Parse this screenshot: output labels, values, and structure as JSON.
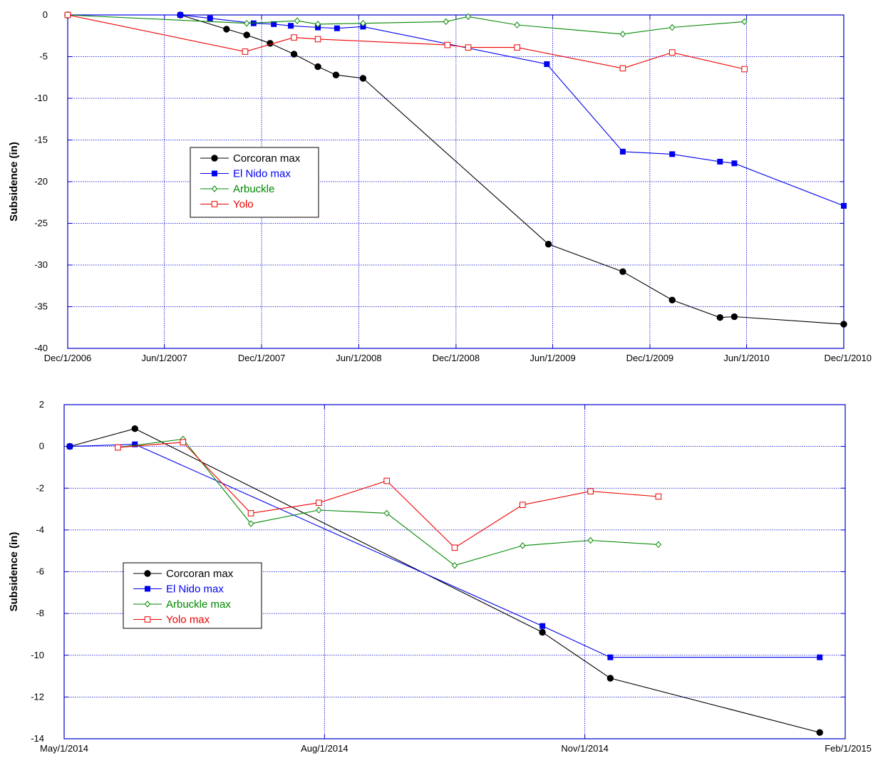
{
  "chart_data": [
    {
      "type": "line",
      "title": "",
      "xlabel": "",
      "ylabel": "Subsidence (in)",
      "ylim": [
        -40,
        0
      ],
      "xlim": [
        "2006-12-01",
        "2010-12-01"
      ],
      "yticks": [
        0,
        -5,
        -10,
        -15,
        -20,
        -25,
        -30,
        -35,
        -40
      ],
      "xticks": [
        {
          "date": "2006-12-01",
          "label": "Dec/1/2006"
        },
        {
          "date": "2007-06-01",
          "label": "Jun/1/2007"
        },
        {
          "date": "2007-12-01",
          "label": "Dec/1/2007"
        },
        {
          "date": "2008-06-01",
          "label": "Jun/1/2008"
        },
        {
          "date": "2008-12-01",
          "label": "Dec/1/2008"
        },
        {
          "date": "2009-06-01",
          "label": "Jun/1/2009"
        },
        {
          "date": "2009-12-01",
          "label": "Dec/1/2009"
        },
        {
          "date": "2010-06-01",
          "label": "Jun/1/2010"
        },
        {
          "date": "2010-12-01",
          "label": "Dec/1/2010"
        }
      ],
      "grid": true,
      "legend_position": "left-middle",
      "series": [
        {
          "name": "Corcoran max",
          "color": "#000000",
          "marker": "filled-circle",
          "points": [
            [
              "2006-12-01",
              0
            ],
            [
              "2007-07-01",
              0
            ],
            [
              "2007-09-26",
              -1.7
            ],
            [
              "2007-11-03",
              -2.4
            ],
            [
              "2007-12-17",
              -3.4
            ],
            [
              "2008-01-31",
              -4.7
            ],
            [
              "2008-03-16",
              -6.2
            ],
            [
              "2008-04-19",
              -7.2
            ],
            [
              "2008-06-09",
              -7.6
            ],
            [
              "2009-05-24",
              -27.5
            ],
            [
              "2009-10-11",
              -30.8
            ],
            [
              "2010-01-12",
              -34.2
            ],
            [
              "2010-04-12",
              -36.3
            ],
            [
              "2010-05-09",
              -36.2
            ],
            [
              "2010-12-01",
              -37.1
            ]
          ]
        },
        {
          "name": "El Nido max",
          "color": "#0000ee",
          "marker": "filled-square",
          "points": [
            [
              "2006-12-01",
              0
            ],
            [
              "2007-07-01",
              0
            ],
            [
              "2007-08-26",
              -0.4
            ],
            [
              "2007-11-16",
              -1.0
            ],
            [
              "2007-12-24",
              -1.1
            ],
            [
              "2008-01-25",
              -1.3
            ],
            [
              "2008-03-16",
              -1.5
            ],
            [
              "2008-04-21",
              -1.6
            ],
            [
              "2008-06-09",
              -1.4
            ],
            [
              "2009-05-21",
              -5.9
            ],
            [
              "2009-10-11",
              -16.4
            ],
            [
              "2010-01-12",
              -16.7
            ],
            [
              "2010-04-12",
              -17.6
            ],
            [
              "2010-05-09",
              -17.8
            ],
            [
              "2010-12-01",
              -22.9
            ]
          ]
        },
        {
          "name": "Arbuckle",
          "color": "#008800",
          "marker": "open-diamond",
          "points": [
            [
              "2006-12-01",
              0
            ],
            [
              "2007-11-03",
              -1.0
            ],
            [
              "2008-02-06",
              -0.7
            ],
            [
              "2008-03-16",
              -1.1
            ],
            [
              "2008-06-09",
              -1.0
            ],
            [
              "2008-11-12",
              -0.8
            ],
            [
              "2008-12-24",
              -0.2
            ],
            [
              "2009-03-26",
              -1.2
            ],
            [
              "2009-10-11",
              -2.3
            ],
            [
              "2010-01-12",
              -1.5
            ],
            [
              "2010-05-28",
              -0.8
            ]
          ]
        },
        {
          "name": "Yolo",
          "color": "#ee0000",
          "marker": "open-square",
          "points": [
            [
              "2006-12-01",
              0
            ],
            [
              "2007-10-31",
              -4.4
            ],
            [
              "2008-01-31",
              -2.7
            ],
            [
              "2008-03-16",
              -2.9
            ],
            [
              "2008-11-15",
              -3.6
            ],
            [
              "2008-12-24",
              -3.9
            ],
            [
              "2009-03-26",
              -3.9
            ],
            [
              "2009-10-11",
              -6.4
            ],
            [
              "2010-01-12",
              -4.5
            ],
            [
              "2010-05-28",
              -6.5
            ]
          ]
        }
      ]
    },
    {
      "type": "line",
      "title": "",
      "xlabel": "",
      "ylabel": "Subsidence (in)",
      "ylim": [
        -14,
        2
      ],
      "xlim": [
        "2014-05-01",
        "2015-02-01"
      ],
      "yticks": [
        2,
        0,
        -2,
        -4,
        -6,
        -8,
        -10,
        -12,
        -14
      ],
      "xticks": [
        {
          "date": "2014-05-01",
          "label": "May/1/2014"
        },
        {
          "date": "2014-08-01",
          "label": "Aug/1/2014"
        },
        {
          "date": "2014-11-01",
          "label": "Nov/1/2014"
        },
        {
          "date": "2015-02-01",
          "label": "Feb/1/2015"
        }
      ],
      "grid": true,
      "legend_position": "left-lower-middle",
      "series": [
        {
          "name": "Corcoran max",
          "color": "#000000",
          "marker": "filled-circle",
          "points": [
            [
              "2014-05-03",
              0
            ],
            [
              "2014-05-26",
              0.85
            ],
            [
              "2014-10-17",
              -8.9
            ],
            [
              "2014-11-10",
              -11.1
            ],
            [
              "2015-01-23",
              -13.7
            ]
          ]
        },
        {
          "name": "El Nido max",
          "color": "#0000ee",
          "marker": "filled-square",
          "points": [
            [
              "2014-05-03",
              0
            ],
            [
              "2014-05-26",
              0.1
            ],
            [
              "2014-10-17",
              -8.6
            ],
            [
              "2014-11-10",
              -10.1
            ],
            [
              "2015-01-23",
              -10.1
            ]
          ]
        },
        {
          "name": "Arbuckle max",
          "color": "#008800",
          "marker": "open-diamond",
          "points": [
            [
              "2014-05-20",
              -0.05
            ],
            [
              "2014-06-12",
              0.35
            ],
            [
              "2014-07-06",
              -3.7
            ],
            [
              "2014-07-30",
              -3.05
            ],
            [
              "2014-08-23",
              -3.2
            ],
            [
              "2014-09-16",
              -5.7
            ],
            [
              "2014-10-10",
              -4.75
            ],
            [
              "2014-11-03",
              -4.5
            ],
            [
              "2014-11-27",
              -4.7
            ]
          ]
        },
        {
          "name": "Yolo max",
          "color": "#ee0000",
          "marker": "open-square",
          "points": [
            [
              "2014-05-20",
              -0.05
            ],
            [
              "2014-06-12",
              0.2
            ],
            [
              "2014-07-06",
              -3.2
            ],
            [
              "2014-07-30",
              -2.7
            ],
            [
              "2014-08-23",
              -1.65
            ],
            [
              "2014-09-16",
              -4.85
            ],
            [
              "2014-10-10",
              -2.8
            ],
            [
              "2014-11-03",
              -2.15
            ],
            [
              "2014-11-27",
              -2.4
            ]
          ]
        }
      ]
    }
  ]
}
